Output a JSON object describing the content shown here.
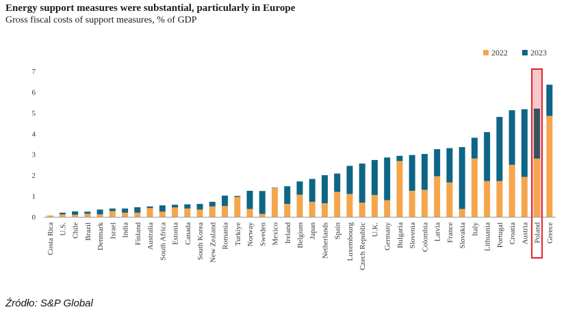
{
  "title": "Energy support measures were substantial, particularly in Europe",
  "subtitle": "Gross fiscal costs of support measures, % of GDP",
  "source": "Źródło: S&P Global",
  "colors": {
    "s2022": "#f5a54c",
    "s2023": "#0e6586",
    "highlight_fill": "#f7c9cc",
    "highlight_border": "#e0202a",
    "axis": "#999999"
  },
  "chart_data": {
    "type": "bar",
    "stacked": true,
    "title": "Energy support measures were substantial, particularly in Europe",
    "subtitle": "Gross fiscal costs of support measures, % of GDP",
    "xlabel": "",
    "ylabel": "",
    "ylim": [
      0,
      7
    ],
    "yticks": [
      0,
      1,
      2,
      3,
      4,
      5,
      6,
      7
    ],
    "legend_position": "top-right",
    "highlight": "Poland",
    "categories": [
      "Costa Rica",
      "U.S.",
      "Chile",
      "Brazil",
      "Denmark",
      "Israel",
      "India",
      "Finland",
      "Australia",
      "South Africa",
      "Estonia",
      "Canada",
      "South Korea",
      "New Zealand",
      "Romania",
      "Turkiye",
      "Norway",
      "Sweden",
      "Mexico",
      "Ireland",
      "Belgium",
      "Japan",
      "Netherlands",
      "Spain",
      "Luxembourg",
      "Czech Republic",
      "U.K.",
      "Germany",
      "Bulgaria",
      "Slovenia",
      "Colombia",
      "Latvia",
      "France",
      "Slovakia",
      "Italy",
      "Lithuania",
      "Portugal",
      "Croatia",
      "Austria",
      "Poland",
      "Greece"
    ],
    "series": [
      {
        "name": "2022",
        "values": [
          0.07,
          0.12,
          0.1,
          0.15,
          0.12,
          0.28,
          0.2,
          0.2,
          0.42,
          0.25,
          0.45,
          0.4,
          0.35,
          0.5,
          0.52,
          0.95,
          0.38,
          0.14,
          1.38,
          0.62,
          1.06,
          0.72,
          0.65,
          1.2,
          1.1,
          0.68,
          1.05,
          0.8,
          2.68,
          1.25,
          1.3,
          1.95,
          1.65,
          0.38,
          2.8,
          1.72,
          1.72,
          2.5,
          1.92,
          2.8,
          4.85
        ]
      },
      {
        "name": "2023",
        "values": [
          0.0,
          0.08,
          0.16,
          0.1,
          0.23,
          0.12,
          0.2,
          0.26,
          0.08,
          0.3,
          0.13,
          0.2,
          0.27,
          0.22,
          0.5,
          0.05,
          0.87,
          1.1,
          0.02,
          0.85,
          0.64,
          1.1,
          1.35,
          0.88,
          1.35,
          1.88,
          1.68,
          2.05,
          0.25,
          1.72,
          1.72,
          1.3,
          1.65,
          2.97,
          1.0,
          2.35,
          3.08,
          2.62,
          3.25,
          2.4,
          1.5
        ]
      }
    ]
  }
}
